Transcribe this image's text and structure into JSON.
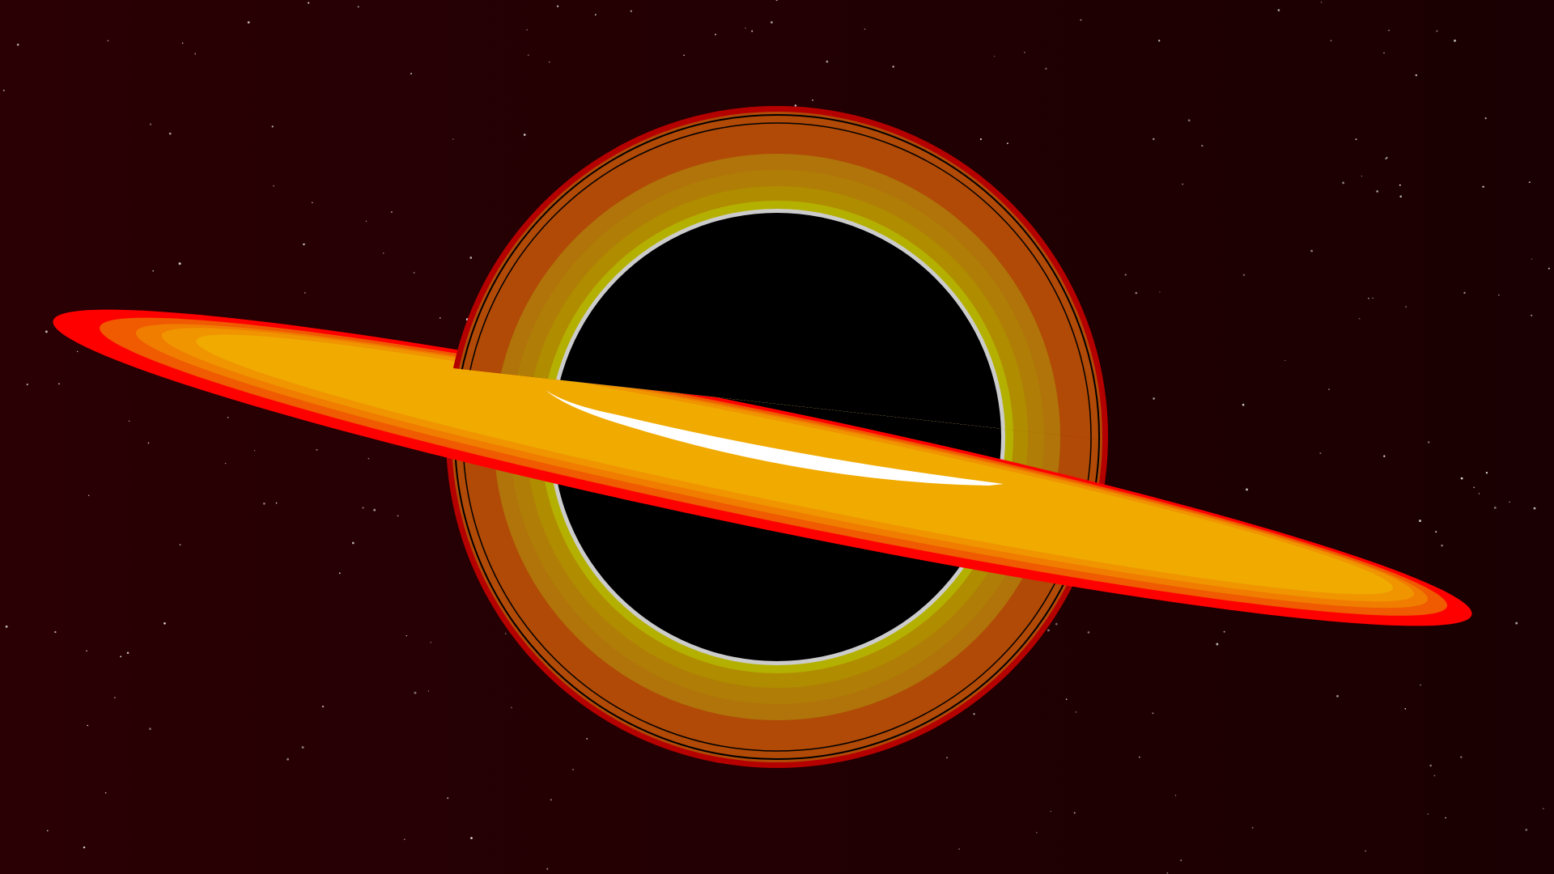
{
  "scene": {
    "subject": "black-hole-illustration",
    "palette": {
      "background_left": "#2a0004",
      "background_right": "#1a0002",
      "star": "#ffffff",
      "halo_outer_rim": "#b50000",
      "halo_outer": "#b04a06",
      "halo_mid": "#b0740a",
      "halo_inner": "#b08c00",
      "halo_innermost": "#b4b000",
      "photon_ring": "#cccccc",
      "shadow": "#000000",
      "disk_edge": "#ff0000",
      "disk_outer": "#f05a00",
      "disk_mid_1": "#f07c00",
      "disk_mid_2": "#f09400",
      "disk_inner": "#f0aa00",
      "front_arc": "#ffffff"
    },
    "star_count": 260
  }
}
